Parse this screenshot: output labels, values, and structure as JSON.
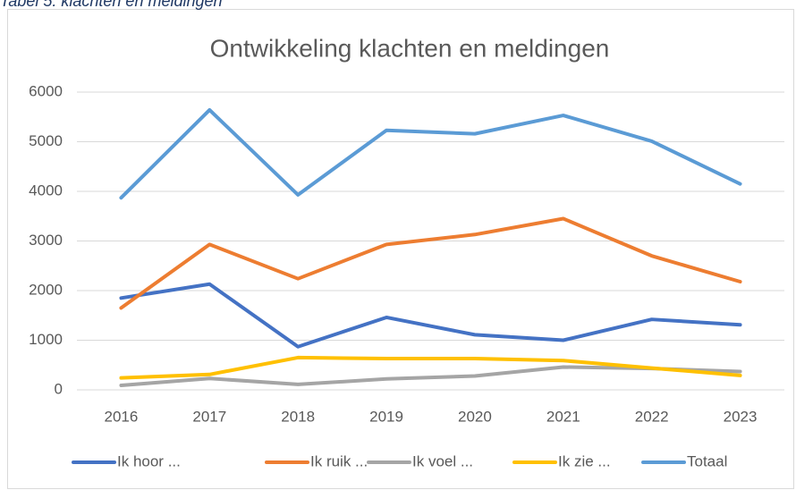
{
  "caption": "Tabel 5: klachten en meldingen",
  "chart_data": {
    "type": "line",
    "title": "Ontwikkeling klachten en meldingen",
    "categories": [
      "2016",
      "2017",
      "2018",
      "2019",
      "2020",
      "2021",
      "2022",
      "2023"
    ],
    "series": [
      {
        "name": "Ik hoor ...",
        "color": "#4472c4",
        "values": [
          1850,
          2130,
          870,
          1460,
          1110,
          1000,
          1420,
          1310
        ]
      },
      {
        "name": "Ik ruik ...",
        "color": "#ed7d31",
        "values": [
          1650,
          2930,
          2240,
          2930,
          3130,
          3450,
          2700,
          2180
        ]
      },
      {
        "name": "Ik voel ...",
        "color": "#a5a5a5",
        "values": [
          90,
          230,
          110,
          220,
          280,
          460,
          430,
          370
        ]
      },
      {
        "name": "Ik zie ...",
        "color": "#ffc000",
        "values": [
          240,
          310,
          650,
          630,
          630,
          590,
          440,
          290
        ]
      },
      {
        "name": "Totaal",
        "color": "#5b9bd5",
        "values": [
          3870,
          5640,
          3930,
          5230,
          5160,
          5530,
          5010,
          4150
        ]
      }
    ],
    "ylim": [
      0,
      6000
    ],
    "yticks": [
      0,
      1000,
      2000,
      3000,
      4000,
      5000,
      6000
    ],
    "grid": true,
    "legend": "bottom"
  }
}
